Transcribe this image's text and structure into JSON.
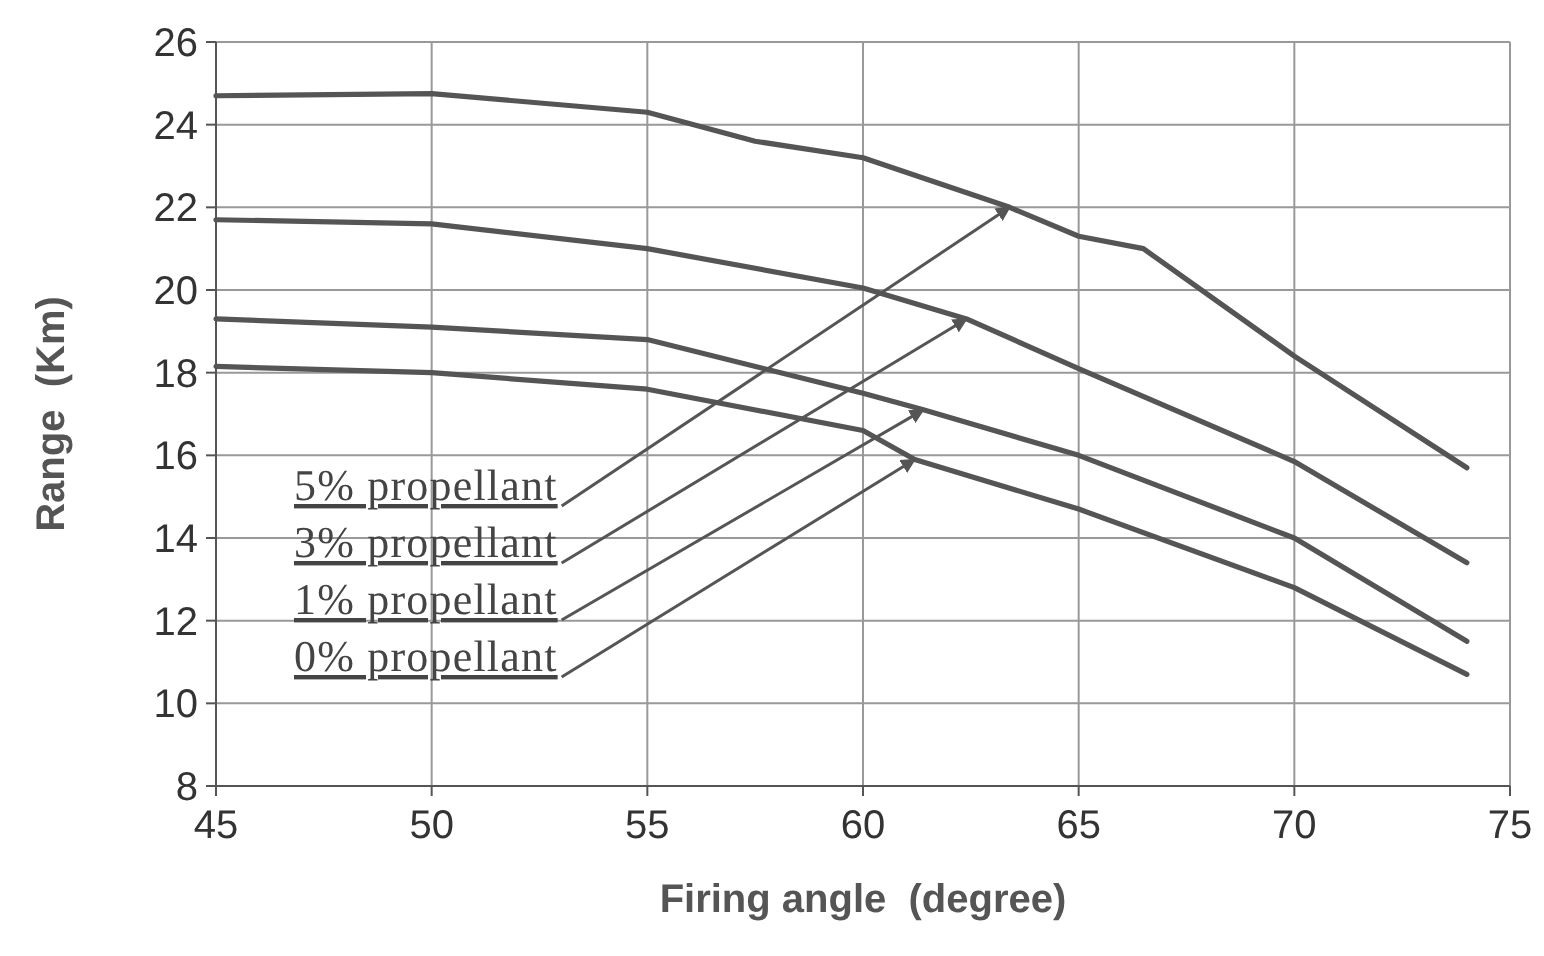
{
  "chart_data": {
    "type": "line",
    "xlabel": "Firing angle  (degree)",
    "ylabel": "Range  (Km)",
    "xlim": [
      45,
      75
    ],
    "xticks": [
      45,
      50,
      55,
      60,
      65,
      70,
      75
    ],
    "ylim": [
      8,
      26
    ],
    "yticks": [
      8,
      10,
      12,
      14,
      16,
      18,
      20,
      22,
      24,
      26
    ],
    "grid": true,
    "marker": "none",
    "line_style": "solid",
    "series": [
      {
        "color": "#555555",
        "x": [
          45,
          50,
          55,
          57.5,
          60,
          63.4,
          65,
          66.5,
          70,
          74
        ],
        "values": [
          24.7,
          24.75,
          24.3,
          23.6,
          23.2,
          22.0,
          21.3,
          21.0,
          18.4,
          15.7
        ]
      },
      {
        "color": "#555555",
        "x": [
          45,
          50,
          55,
          60,
          62.4,
          65,
          70,
          74
        ],
        "values": [
          21.7,
          21.6,
          21.0,
          20.05,
          19.3,
          18.1,
          15.85,
          13.4
        ]
      },
      {
        "color": "#555555",
        "x": [
          45,
          50,
          55,
          60,
          61.4,
          65,
          70,
          74
        ],
        "values": [
          19.3,
          19.1,
          18.8,
          17.5,
          17.1,
          16.0,
          14.0,
          11.5
        ]
      },
      {
        "color": "#555555",
        "x": [
          45,
          50,
          55,
          60,
          61.2,
          65,
          70,
          74
        ],
        "values": [
          18.15,
          18.0,
          17.6,
          16.6,
          15.9,
          14.7,
          12.8,
          10.7
        ]
      }
    ],
    "annotations": [
      {
        "text": "5% propellant",
        "x": 63.4,
        "y": 22.0
      },
      {
        "text": "3% propellant",
        "x": 62.4,
        "y": 19.3
      },
      {
        "text": "1% propellant",
        "x": 61.4,
        "y": 17.1
      },
      {
        "text": "0% propellant",
        "x": 61.2,
        "y": 15.9
      }
    ]
  }
}
